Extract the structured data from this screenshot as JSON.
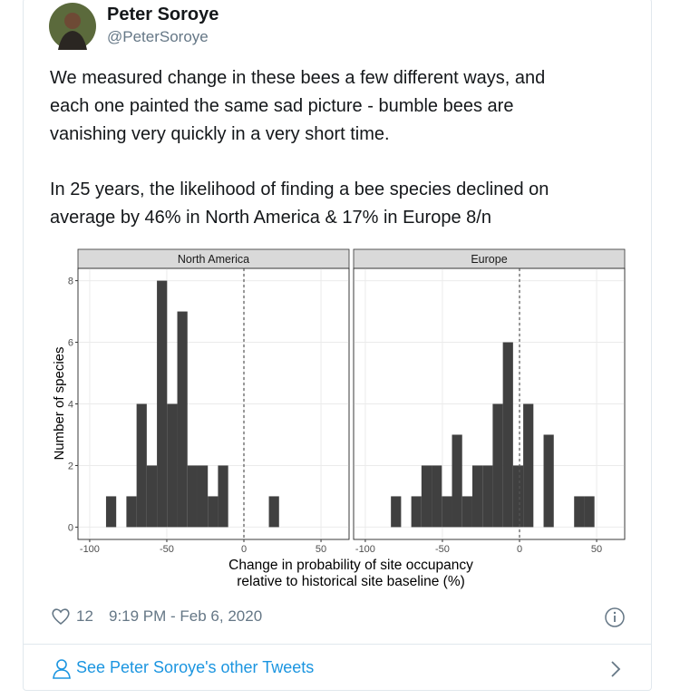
{
  "author": {
    "name": "Peter Soroye",
    "handle": "@PeterSoroye"
  },
  "text": [
    [
      "We measured change in these bees a few different ways, and",
      "each one painted the same sad picture - bumble bees are",
      "vanishing very quickly in a very short time."
    ],
    [
      "In 25 years, the likelihood of finding a bee species declined on",
      "average by 46% in North America & 17% in Europe 8/n"
    ]
  ],
  "chart_data": [
    {
      "type": "histogram",
      "title": "North America",
      "color": "#404040",
      "grid": true,
      "vline": 0,
      "ylabel": "Number of species",
      "xlabel": [
        "Change in probability of site occupancy",
        "relative to historical site baseline (%)"
      ],
      "bins": [
        -89.4,
        -82.8,
        -76.2,
        -69.6,
        -63,
        -56.4,
        -49.8,
        -43.2,
        -36.6,
        -30,
        -23.4,
        -16.8,
        -10.2,
        -3.6,
        3,
        9.6,
        16.2,
        22.8
      ],
      "counts": [
        1,
        0,
        1,
        4,
        2,
        8,
        4,
        7,
        2,
        2,
        1,
        2,
        0,
        0,
        0,
        0,
        1
      ],
      "xlim": [
        -107.6,
        68.2
      ],
      "ylim": [
        -0.4,
        8.4
      ],
      "xticks": [
        -100,
        -50,
        0,
        50
      ],
      "yticks": [
        0,
        2,
        4,
        6,
        8
      ]
    },
    {
      "type": "histogram",
      "title": "Europe",
      "color": "#404040",
      "grid": true,
      "vline": 0,
      "bins": [
        -83.4,
        -76.8,
        -70.2,
        -63.6,
        -57,
        -50.4,
        -43.8,
        -37.2,
        -30.6,
        -24,
        -17.4,
        -10.8,
        -4.2,
        2.4,
        9,
        15.6,
        22.2,
        28.8,
        35.4,
        42,
        48.6
      ],
      "counts": [
        1,
        0,
        1,
        2,
        2,
        1,
        3,
        1,
        2,
        2,
        4,
        6,
        2,
        4,
        0,
        3,
        0,
        0,
        1,
        1
      ],
      "xlim": [
        -107.6,
        68.2
      ],
      "ylim": [
        -0.4,
        8.4
      ],
      "xticks": [
        -100,
        -50,
        0,
        50
      ],
      "yticks": [
        0,
        2,
        4,
        6,
        8
      ]
    }
  ],
  "footer": {
    "likes": 12,
    "timestamp": "9:19 PM - Feb 6, 2020",
    "more": "See Peter Soroye's other Tweets"
  }
}
